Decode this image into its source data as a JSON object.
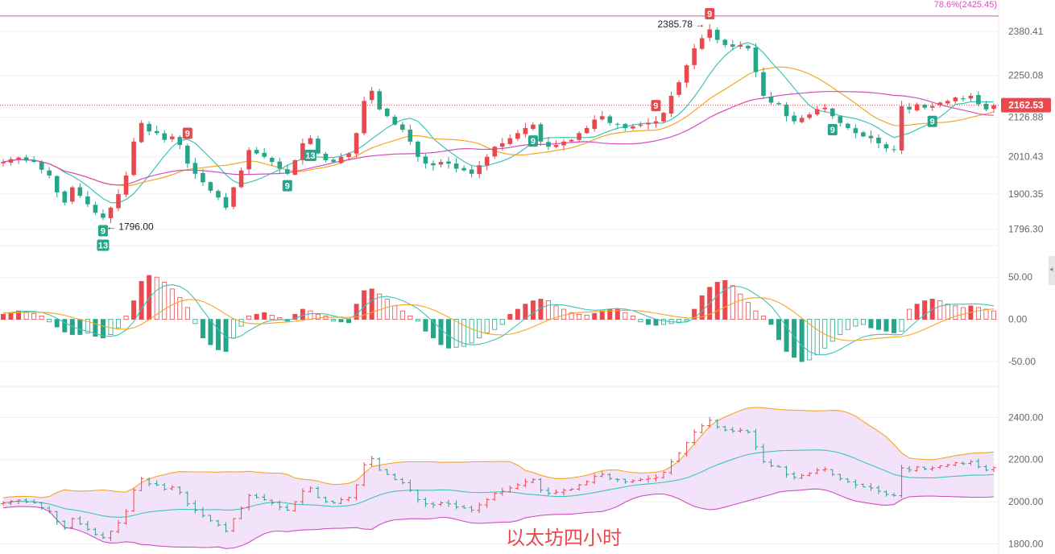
{
  "chart_data": [
    {
      "type": "candlestick",
      "panel": "price",
      "y_ticks": [
        "2380.41",
        "2250.08",
        "2126.88",
        "2010.43",
        "1900.35",
        "1796.30"
      ],
      "ylim": [
        1760,
        2430
      ],
      "current_price": "2162.53",
      "fib_line": {
        "label": "78.6%(2425.45)",
        "value": 2425.45
      },
      "annotations": {
        "high": "2385.78",
        "low": "1796.00"
      },
      "td_badges": [
        {
          "label": "9",
          "type": "sell"
        },
        {
          "label": "9",
          "type": "buy"
        },
        {
          "label": "13",
          "type": "buy"
        },
        {
          "label": "9",
          "type": "buy"
        },
        {
          "label": "13",
          "type": "buy"
        },
        {
          "label": "9",
          "type": "buy"
        },
        {
          "label": "9",
          "type": "sell"
        },
        {
          "label": "9",
          "type": "sell"
        },
        {
          "label": "9",
          "type": "buy"
        },
        {
          "label": "9",
          "type": "buy"
        }
      ],
      "closes": [
        1995,
        2003,
        2008,
        1999,
        1995,
        1972,
        1955,
        1905,
        1875,
        1920,
        1895,
        1870,
        1845,
        1830,
        1860,
        1900,
        1955,
        2055,
        2110,
        2085,
        2080,
        2060,
        2070,
        2045,
        1990,
        1960,
        1935,
        1910,
        1890,
        1860,
        1920,
        1970,
        2030,
        2020,
        2010,
        1995,
        1975,
        1960,
        2000,
        2050,
        2065,
        2020,
        2000,
        1995,
        2010,
        2020,
        2080,
        2175,
        2205,
        2150,
        2130,
        2105,
        2090,
        2055,
        2010,
        1990,
        1985,
        1995,
        1990,
        1975,
        1970,
        1960,
        1985,
        2010,
        2040,
        2050,
        2065,
        2080,
        2095,
        2105,
        2055,
        2040,
        2045,
        2055,
        2060,
        2080,
        2095,
        2120,
        2130,
        2110,
        2105,
        2095,
        2100,
        2105,
        2110,
        2115,
        2140,
        2190,
        2230,
        2280,
        2330,
        2360,
        2386,
        2355,
        2340,
        2335,
        2340,
        2330,
        2260,
        2190,
        2170,
        2165,
        2130,
        2115,
        2125,
        2135,
        2150,
        2155,
        2130,
        2110,
        2095,
        2080,
        2070,
        2065,
        2050,
        2035,
        2030,
        2160,
        2150,
        2165,
        2155,
        2160,
        2170,
        2175,
        2185,
        2180,
        2190,
        2165,
        2150,
        2162
      ]
    },
    {
      "type": "macd",
      "panel": "macd",
      "y_ticks": [
        "50.00",
        "0.00",
        "-50.00"
      ],
      "ylim": [
        -70,
        75
      ],
      "histogram": [
        6,
        8,
        10,
        9,
        7,
        4,
        -3,
        -9,
        -15,
        -18,
        -18,
        -16,
        -20,
        -22,
        -18,
        -10,
        4,
        22,
        45,
        52,
        50,
        44,
        36,
        26,
        14,
        -5,
        -22,
        -30,
        -36,
        -38,
        -22,
        -8,
        4,
        6,
        8,
        5,
        2,
        -2,
        6,
        12,
        10,
        6,
        4,
        -2,
        -3,
        -4,
        18,
        34,
        36,
        30,
        24,
        16,
        10,
        4,
        -2,
        -14,
        -22,
        -30,
        -34,
        -33,
        -32,
        -28,
        -22,
        -16,
        -12,
        -6,
        6,
        12,
        18,
        22,
        24,
        22,
        16,
        12,
        8,
        6,
        5,
        7,
        10,
        12,
        12,
        8,
        4,
        -3,
        -6,
        -7,
        -6,
        -5,
        -4,
        -2,
        12,
        28,
        38,
        44,
        46,
        40,
        30,
        20,
        10,
        4,
        -6,
        -24,
        -38,
        -45,
        -50,
        -48,
        -42,
        -34,
        -26,
        -18,
        -12,
        -8,
        -6,
        -10,
        -12,
        -14,
        -16,
        -14,
        12,
        18,
        22,
        24,
        22,
        18,
        16,
        14,
        16,
        14,
        12,
        10
      ]
    },
    {
      "type": "bollinger",
      "panel": "boll",
      "y_ticks": [
        "2400.00",
        "2200.00",
        "2000.00",
        "1800.00"
      ],
      "ylim": [
        1760,
        2470
      ]
    }
  ],
  "watermark": "以太坊四小时"
}
